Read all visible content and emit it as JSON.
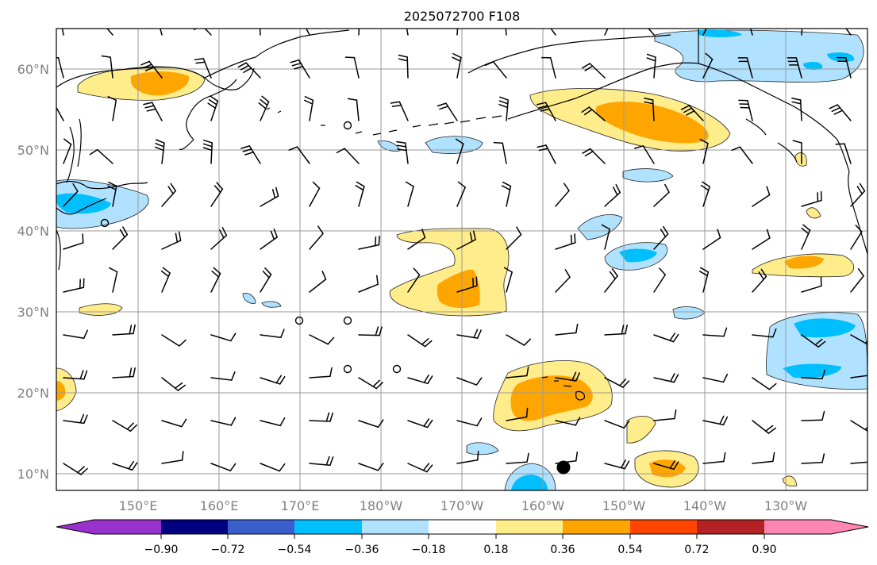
{
  "title": "2025072700 F108",
  "colors": {
    "neg_0": "#9932cc",
    "neg_1": "#000080",
    "neg_2": "#3a5fcd",
    "neg_3": "#00bfff",
    "neg_4": "#b0e2ff",
    "neutral": "#ffffff",
    "pos_0": "#ffec8b",
    "pos_1": "#ffa500",
    "pos_2": "#ff4500",
    "pos_3": "#b22222",
    "pos_4": "#ff86b0"
  },
  "map": {
    "x_ticks": [
      "150°E",
      "160°E",
      "170°E",
      "180°W",
      "170°W",
      "160°W",
      "150°W",
      "140°W",
      "130°W"
    ],
    "y_ticks": [
      "60°N",
      "50°N",
      "40°N",
      "30°N",
      "20°N",
      "10°N"
    ],
    "marker": "storm-center-dot"
  },
  "colorbar": {
    "ticks": [
      "−0.90",
      "−0.72",
      "−0.54",
      "−0.36",
      "−0.18",
      "0.18",
      "0.36",
      "0.54",
      "0.72",
      "0.90"
    ],
    "levels": [
      -0.9,
      -0.72,
      -0.54,
      -0.36,
      -0.18,
      0.18,
      0.36,
      0.54,
      0.72,
      0.9
    ]
  }
}
